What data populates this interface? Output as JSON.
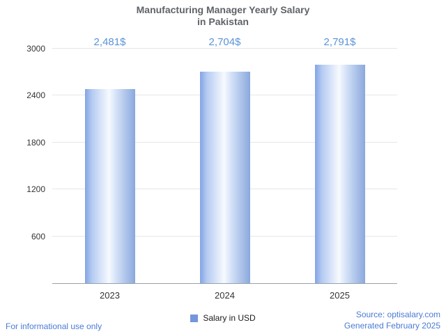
{
  "title": {
    "line1": "Manufacturing Manager Yearly Salary",
    "line2": "in Pakistan"
  },
  "chart_data": {
    "type": "bar",
    "title": "Manufacturing Manager Yearly Salary in Pakistan",
    "categories": [
      "2023",
      "2024",
      "2025"
    ],
    "values": [
      2481,
      2704,
      2791
    ],
    "value_labels": [
      "2,481$",
      "2,704$",
      "2,791$"
    ],
    "series_name": "Salary in USD",
    "xlabel": "",
    "ylabel": "",
    "ylim": [
      0,
      3000
    ],
    "yticks": [
      600,
      1200,
      1800,
      2400,
      3000
    ],
    "grid": true,
    "legend_position": "bottom"
  },
  "legend": {
    "label": "Salary in USD",
    "swatch_color": "#7396dc"
  },
  "footer": {
    "left": "For informational use only",
    "source": "Source: optisalary.com",
    "generated": "Generated February 2025"
  },
  "colors": {
    "title": "#5f6368",
    "value_label": "#5b93d8",
    "bar_edge": "#83a3e4",
    "bar_center": "#f7faff",
    "gridline": "#e6e6e6",
    "axis_line": "#9aa0a6",
    "link_blue": "#4a7bd4"
  }
}
